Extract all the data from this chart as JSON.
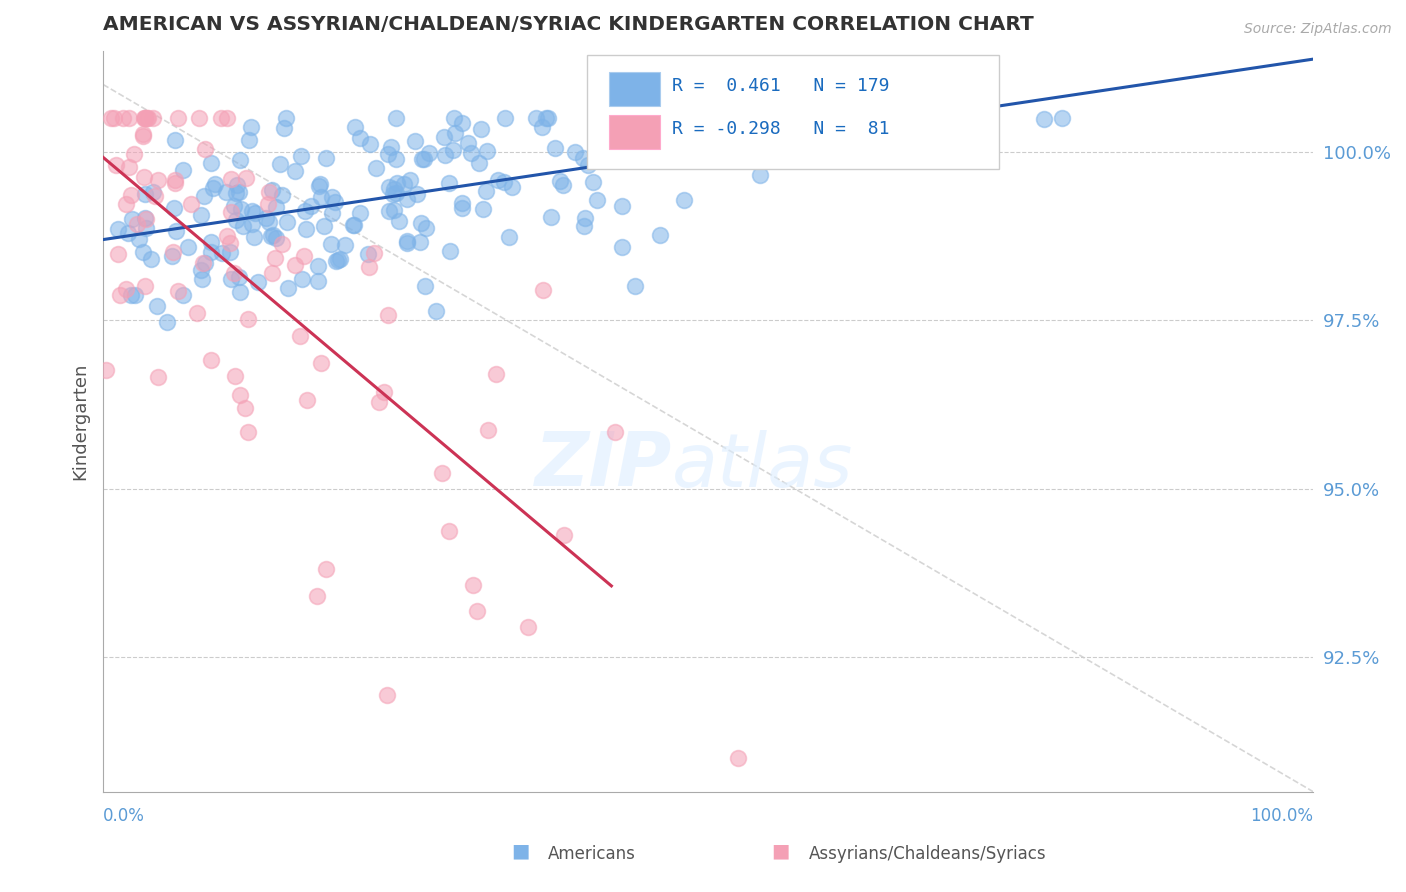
{
  "title": "AMERICAN VS ASSYRIAN/CHALDEAN/SYRIAC KINDERGARTEN CORRELATION CHART",
  "source": "Source: ZipAtlas.com",
  "ylabel": "Kindergarten",
  "r_american": 0.461,
  "n_american": 179,
  "r_assyrian": -0.298,
  "n_assyrian": 81,
  "color_american": "#7EB3E8",
  "color_assyrian": "#F4A0B5",
  "line_color_american": "#2255AA",
  "line_color_assyrian": "#CC3355",
  "axis_color": "#5B9BD5",
  "legend_r_color": "#1a6bbf",
  "watermark_zip": "ZIP",
  "watermark_atlas": "atlas",
  "ylim_min": 0.905,
  "ylim_max": 1.015,
  "xlim_min": 0.0,
  "xlim_max": 1.0,
  "yticks": [
    0.925,
    0.95,
    0.975,
    1.0
  ],
  "ytick_labels": [
    "92.5%",
    "95.0%",
    "97.5%",
    "100.0%"
  ]
}
